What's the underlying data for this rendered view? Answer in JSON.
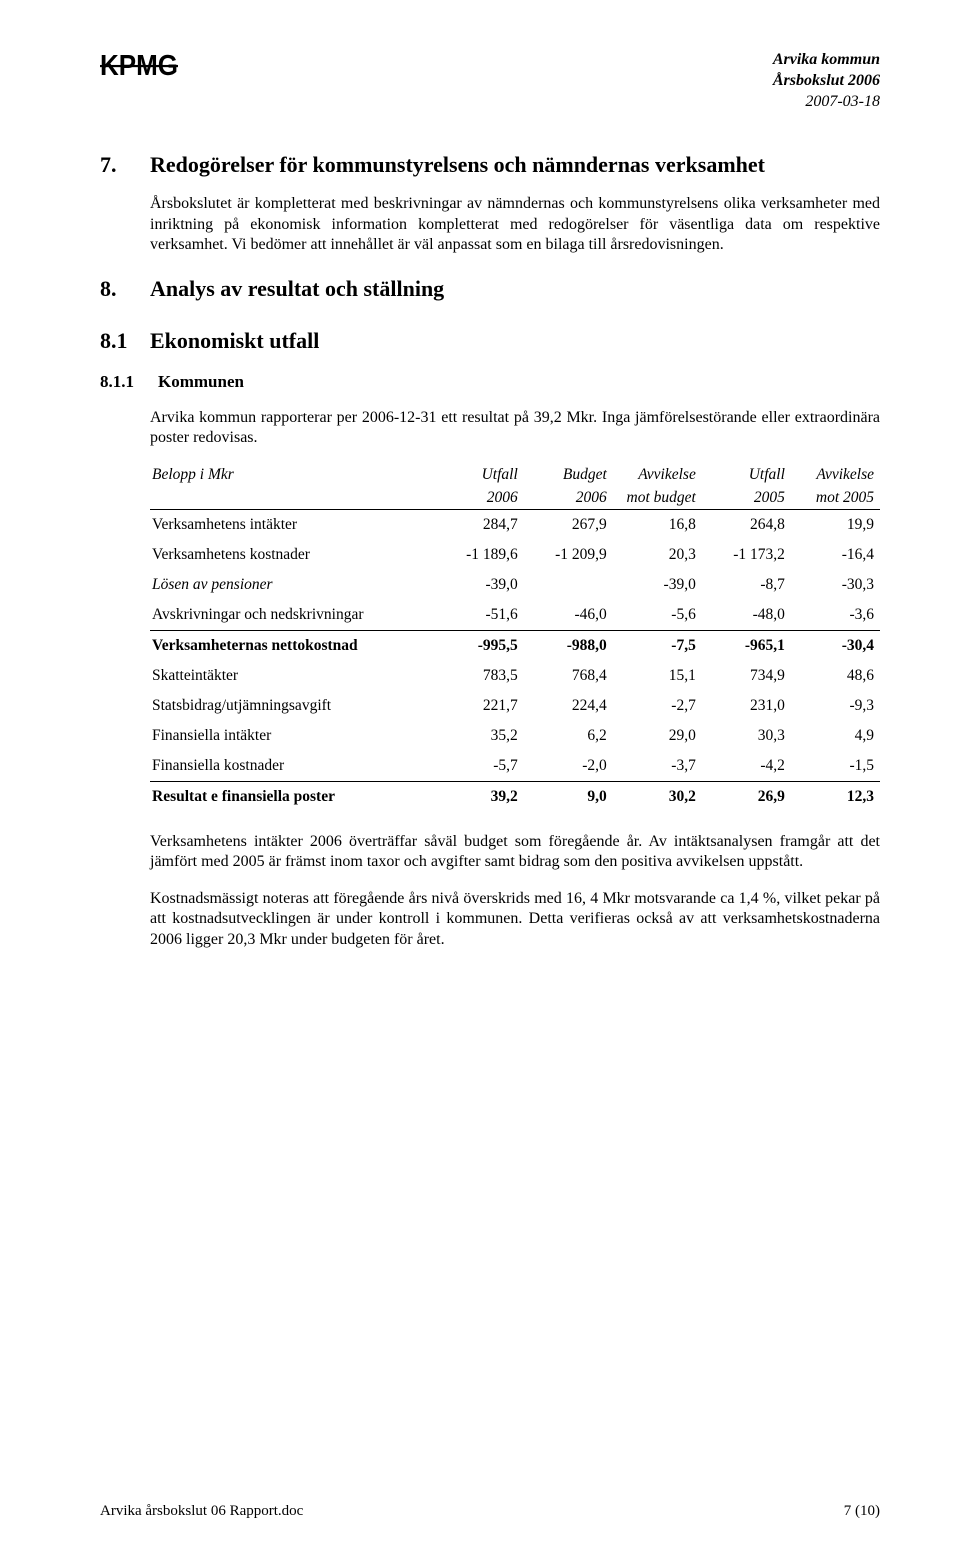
{
  "header": {
    "logo_text": "KPMG",
    "org": "Arvika kommun",
    "report": "Årsbokslut 2006",
    "date": "2007-03-18"
  },
  "sec7": {
    "num": "7.",
    "title": "Redogörelser för kommunstyrelsens och nämndernas verksamhet",
    "p1": "Årsbokslutet är kompletterat med beskrivningar av nämndernas och kommunstyrelsens olika verksamheter med inriktning på ekonomisk information kompletterat med redogörelser för väsentliga data om respektive verksamhet. Vi bedömer att innehållet är väl anpassat som en bilaga till årsredovisningen."
  },
  "sec8": {
    "num": "8.",
    "title": "Analys av resultat och ställning"
  },
  "sec81": {
    "num": "8.1",
    "title": "Ekonomiskt utfall"
  },
  "sec811": {
    "num": "8.1.1",
    "title": "Kommunen",
    "p1": "Arvika kommun rapporterar per 2006-12-31 ett resultat på 39,2 Mkr. Inga jämförelsestörande eller extraordinära poster redovisas."
  },
  "table": {
    "caption": "Belopp i Mkr",
    "head1": [
      "",
      "Utfall",
      "Budget",
      "Avvikelse",
      "Utfall",
      "Avvikelse"
    ],
    "head2": [
      "",
      "2006",
      "2006",
      "mot budget",
      "2005",
      "mot 2005"
    ],
    "rows": [
      {
        "label": "Verksamhetens intäkter",
        "c": [
          "284,7",
          "267,9",
          "16,8",
          "264,8",
          "19,9"
        ]
      },
      {
        "label": "Verksamhetens kostnader",
        "c": [
          "-1 189,6",
          "-1 209,9",
          "20,3",
          "-1 173,2",
          "-16,4"
        ]
      },
      {
        "label": "Lösen av pensioner",
        "c": [
          "-39,0",
          "",
          "-39,0",
          "-8,7",
          "-30,3"
        ],
        "italic": true
      },
      {
        "label": "Avskrivningar och nedskrivningar",
        "c": [
          "-51,6",
          "-46,0",
          "-5,6",
          "-48,0",
          "-3,6"
        ],
        "underline": true
      },
      {
        "label": "Verksamheternas nettokostnad",
        "c": [
          "-995,5",
          "-988,0",
          "-7,5",
          "-965,1",
          "-30,4"
        ],
        "bold": true
      },
      {
        "label": "Skatteintäkter",
        "c": [
          "783,5",
          "768,4",
          "15,1",
          "734,9",
          "48,6"
        ]
      },
      {
        "label": "Statsbidrag/utjämningsavgift",
        "c": [
          "221,7",
          "224,4",
          "-2,7",
          "231,0",
          "-9,3"
        ]
      },
      {
        "label": "Finansiella intäkter",
        "c": [
          "35,2",
          "6,2",
          "29,0",
          "30,3",
          "4,9"
        ]
      },
      {
        "label": "Finansiella kostnader",
        "c": [
          "-5,7",
          "-2,0",
          "-3,7",
          "-4,2",
          "-1,5"
        ],
        "underline": true
      },
      {
        "label": "Resultat e finansiella poster",
        "c": [
          "39,2",
          "9,0",
          "30,2",
          "26,9",
          "12,3"
        ],
        "bold": true
      }
    ]
  },
  "after": {
    "p1": "Verksamhetens intäkter 2006 överträffar såväl budget som föregående år. Av intäktsanalysen framgår att det jämfört med 2005 är främst inom taxor och avgifter samt bidrag som den positiva avvikelsen uppstått.",
    "p2": "Kostnadsmässigt noteras att föregående års nivå överskrids med 16, 4 Mkr motsvarande ca 1,4 %, vilket pekar på att kostnadsutvecklingen är under kontroll i kommunen. Detta verifieras också av att verksamhetskostnaderna 2006 ligger 20,3 Mkr under budgeten för året."
  },
  "footer": {
    "left": "Arvika årsbokslut 06 Rapport.doc",
    "right": "7 (10)"
  }
}
